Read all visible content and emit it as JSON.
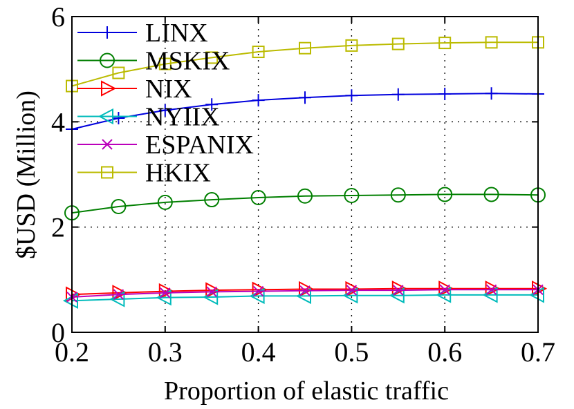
{
  "chart_data": {
    "type": "line",
    "xlabel": "Proportion of elastic traffic",
    "ylabel": "$USD (Million)",
    "xlim": [
      0.2,
      0.7
    ],
    "ylim": [
      0,
      6
    ],
    "xticks": [
      0.2,
      0.3,
      0.4,
      0.5,
      0.6,
      0.7
    ],
    "xtick_labels": [
      "0.2",
      "0.3",
      "0.4",
      "0.5",
      "0.6",
      "0.7"
    ],
    "yticks": [
      0,
      2,
      4,
      6
    ],
    "ytick_labels": [
      "0",
      "2",
      "4",
      "6"
    ],
    "grid": true,
    "legend_position": "top-left",
    "x": [
      0.2,
      0.25,
      0.3,
      0.35,
      0.4,
      0.45,
      0.5,
      0.55,
      0.6,
      0.65,
      0.7
    ],
    "series": [
      {
        "name": "LINX",
        "color": "#0000dd",
        "marker": "plus",
        "values": [
          3.86,
          4.07,
          4.22,
          4.33,
          4.41,
          4.46,
          4.5,
          4.52,
          4.53,
          4.54,
          4.53
        ]
      },
      {
        "name": "MSKIX",
        "color": "#007f00",
        "marker": "circle",
        "values": [
          2.27,
          2.39,
          2.47,
          2.52,
          2.56,
          2.59,
          2.6,
          2.61,
          2.62,
          2.62,
          2.61
        ]
      },
      {
        "name": "NIX",
        "color": "#ff0000",
        "marker": "triangle-right",
        "values": [
          0.72,
          0.75,
          0.78,
          0.8,
          0.81,
          0.82,
          0.82,
          0.83,
          0.83,
          0.83,
          0.83
        ]
      },
      {
        "name": "NYIIX",
        "color": "#00bbbb",
        "marker": "triangle-left",
        "values": [
          0.6,
          0.63,
          0.66,
          0.67,
          0.69,
          0.69,
          0.7,
          0.7,
          0.71,
          0.71,
          0.71
        ]
      },
      {
        "name": "ESPANIX",
        "color": "#bb00bb",
        "marker": "x",
        "values": [
          0.67,
          0.72,
          0.75,
          0.77,
          0.78,
          0.79,
          0.8,
          0.8,
          0.81,
          0.81,
          0.81
        ]
      },
      {
        "name": "HKIX",
        "color": "#bbbb00",
        "marker": "square",
        "values": [
          4.68,
          4.93,
          5.1,
          5.22,
          5.33,
          5.4,
          5.45,
          5.48,
          5.5,
          5.51,
          5.51
        ]
      }
    ]
  }
}
